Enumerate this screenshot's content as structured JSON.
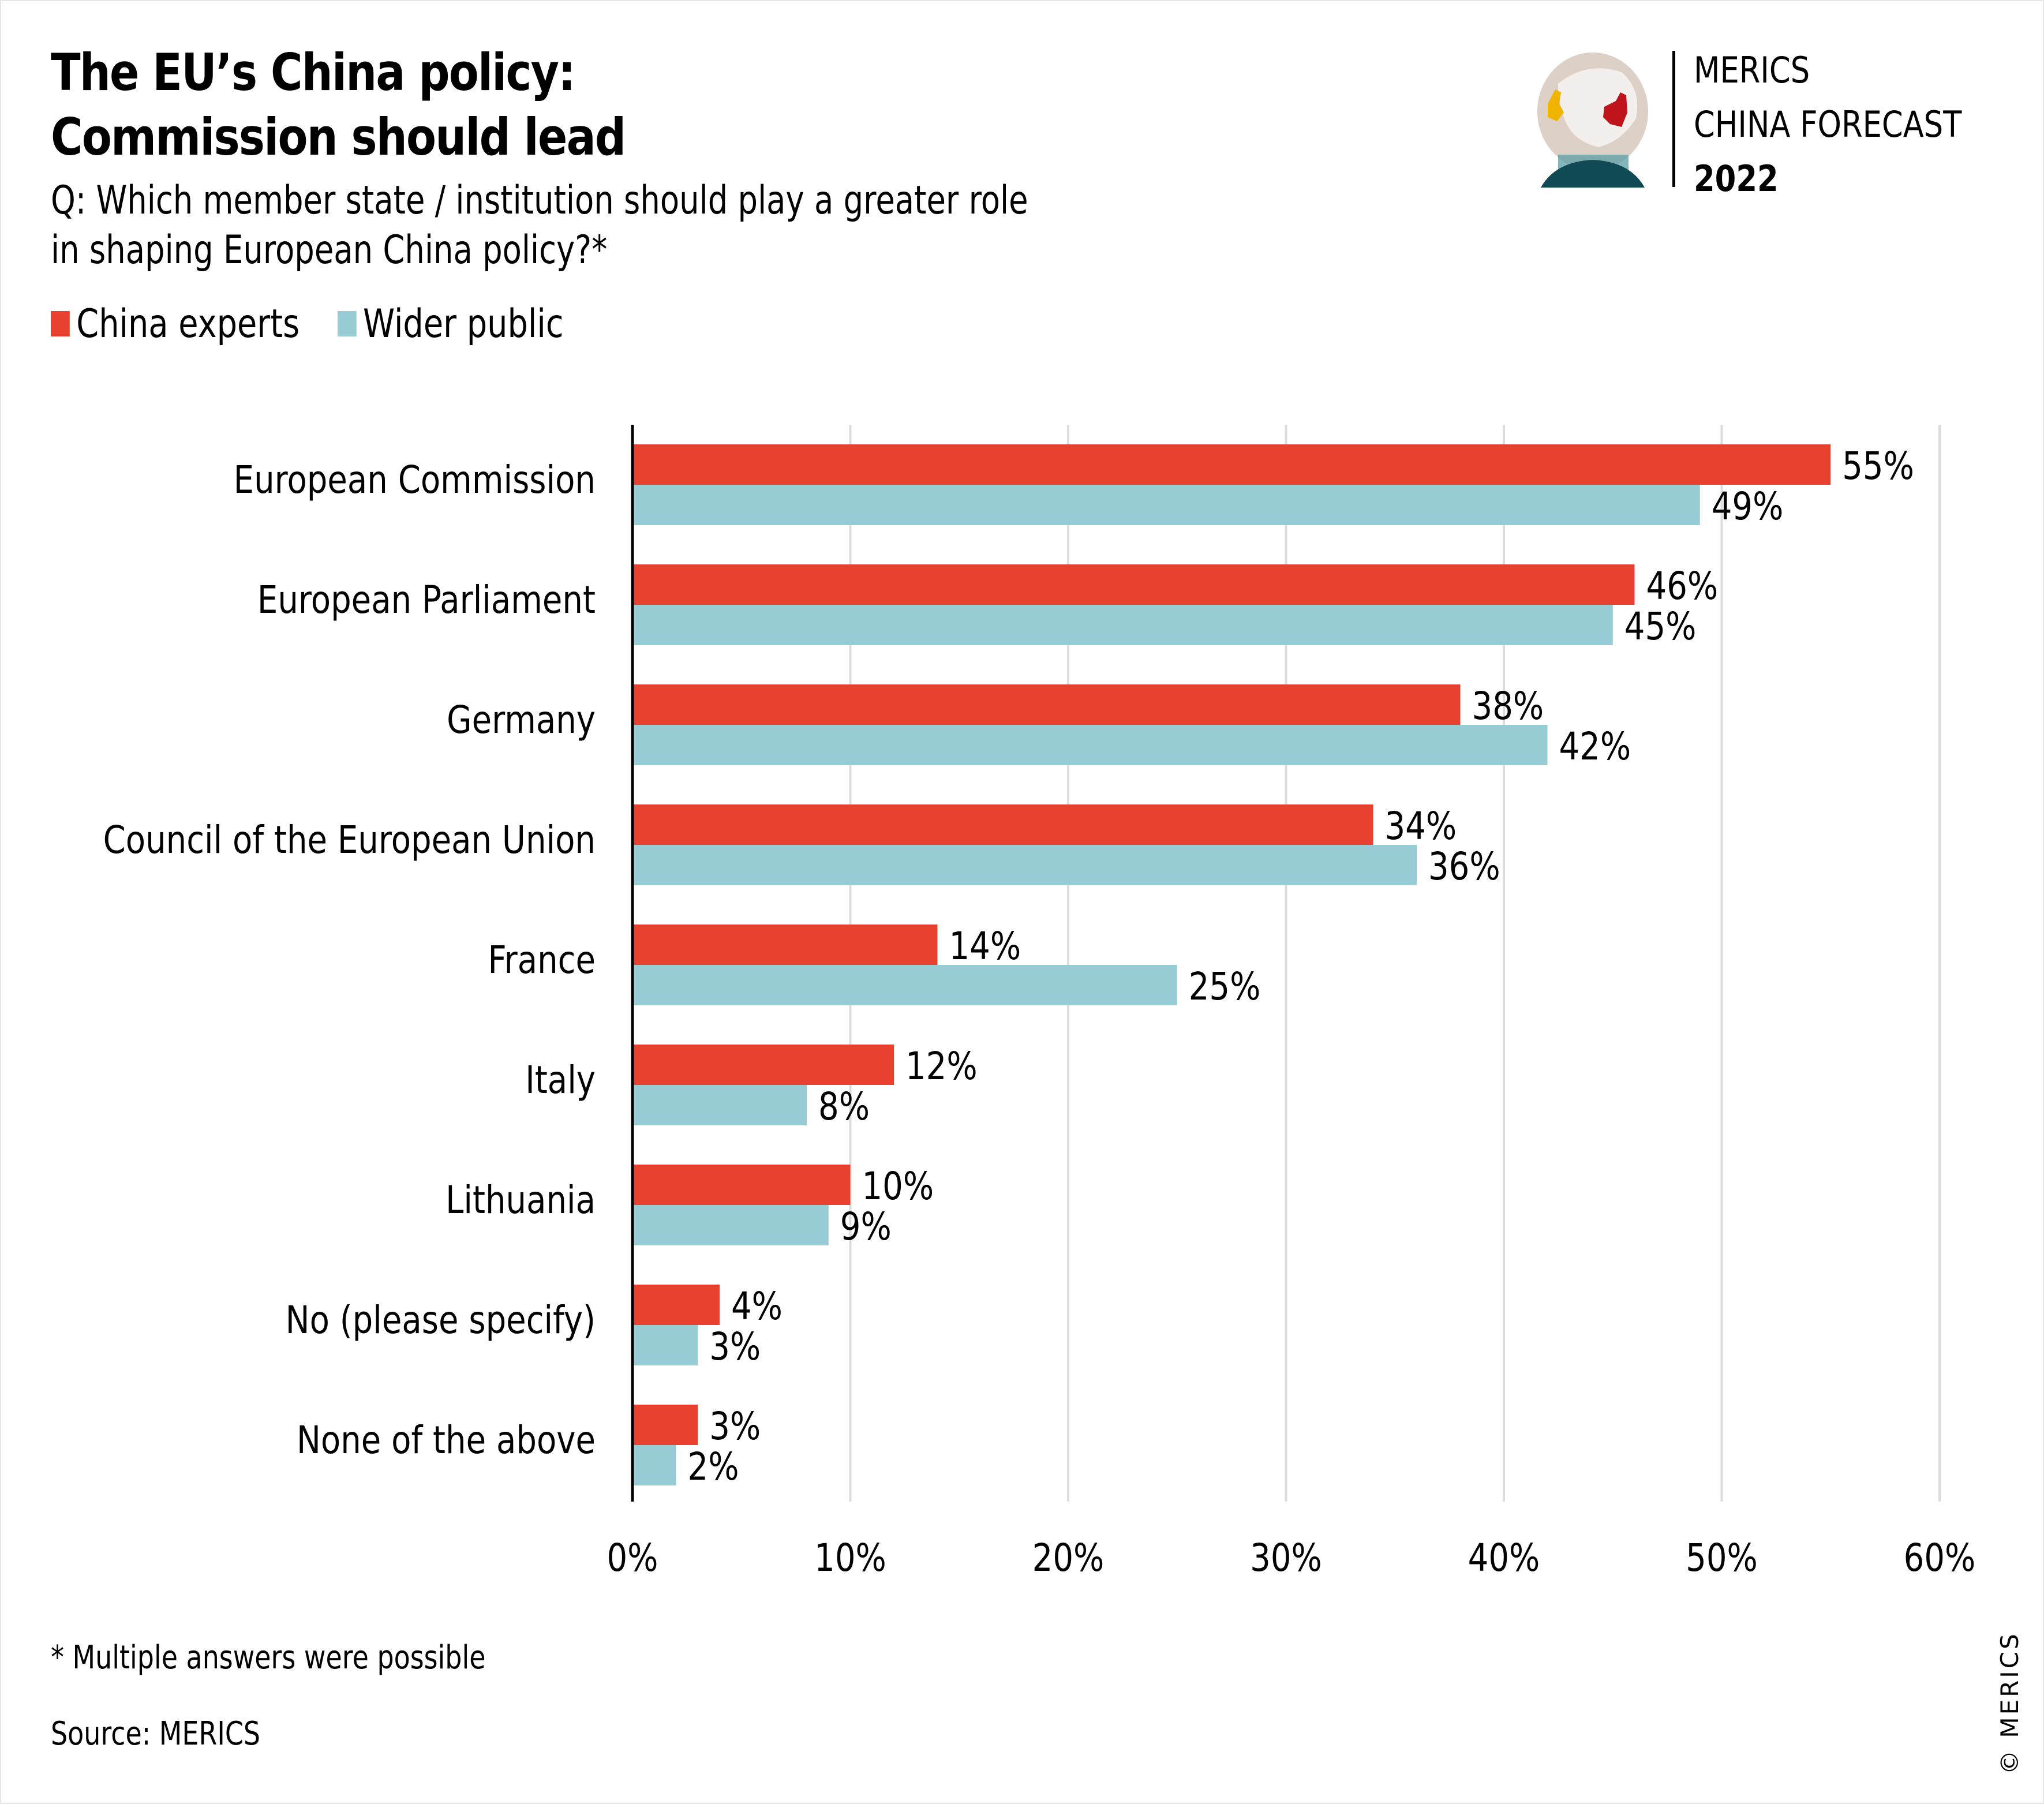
{
  "header": {
    "title_line1": "The EU’s China policy:",
    "title_line2": "Commission should lead",
    "subtitle_line1": "Q: Which member state / institution should play a greater role",
    "subtitle_line2": "in shaping European China policy?*"
  },
  "brand": {
    "line1": "MERICS",
    "line2": "CHINA FORECAST",
    "year": "2022",
    "logo_icon": "crystal-globe-icon"
  },
  "colors": {
    "china_experts": "#e8412f",
    "wider_public": "#97ccd4",
    "gridline": "#dcdcdc",
    "axis": "#000000"
  },
  "chart_data": {
    "type": "bar",
    "orientation": "horizontal",
    "title": "The EU’s China policy: Commission should lead",
    "subtitle": "Q: Which member state / institution should play a greater role in shaping European China policy?*",
    "categories": [
      "European Commission",
      "European Parliament",
      "Germany",
      "Council of the European Union",
      "France",
      "Italy",
      "Lithuania",
      "No (please specify)",
      "None of the above"
    ],
    "series": [
      {
        "name": "China experts",
        "color": "#e8412f",
        "values": [
          55,
          46,
          38,
          34,
          14,
          12,
          10,
          4,
          3
        ],
        "labels": [
          "55%",
          "46%",
          "38%",
          "34%",
          "14%",
          "12%",
          "10%",
          "4%",
          "3%"
        ]
      },
      {
        "name": "Wider public",
        "color": "#97ccd4",
        "values": [
          49,
          45,
          42,
          36,
          25,
          8,
          9,
          3,
          2
        ],
        "labels": [
          "49%",
          "45%",
          "42%",
          "36%",
          "25%",
          "8%",
          "9%",
          "3%",
          "2%"
        ]
      }
    ],
    "xlim": [
      0,
      60
    ],
    "xticks": [
      0,
      10,
      20,
      30,
      40,
      50,
      60
    ],
    "xtick_labels": [
      "0%",
      "10%",
      "20%",
      "30%",
      "40%",
      "50%",
      "60%"
    ],
    "xlabel": "",
    "ylabel": "",
    "grid": "vertical",
    "legend": "top-left"
  },
  "footer": {
    "footnote": "* Multiple answers were possible",
    "source": "Source: MERICS",
    "copyright": "© MERICS"
  }
}
